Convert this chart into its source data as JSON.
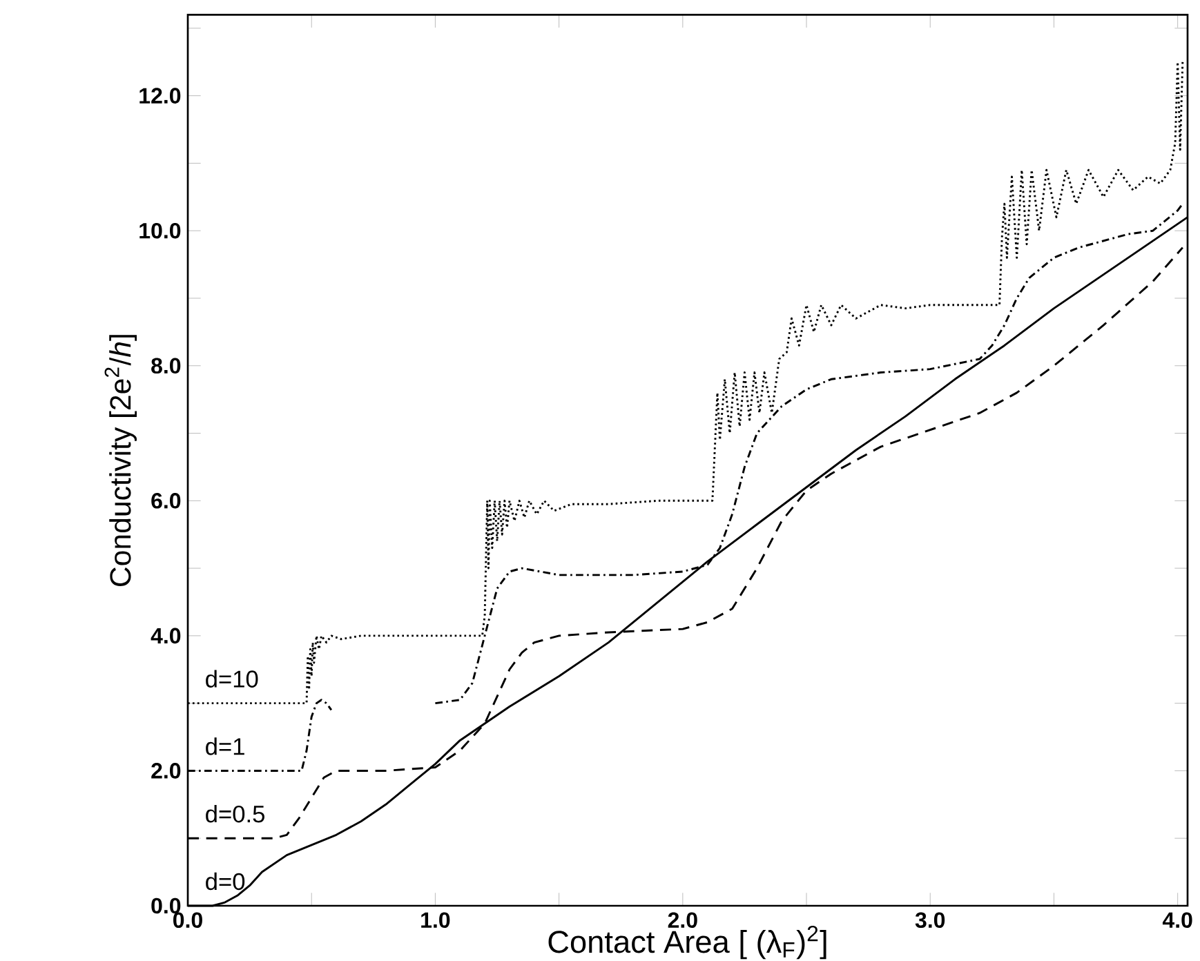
{
  "chart_data": {
    "type": "line",
    "xlabel": "Contact Area [ (λ$_{F}$)$^{2}$]",
    "ylabel": "Conductivity [2e$^{2}$/*h*]",
    "xlim": [
      0,
      4.04
    ],
    "ylim": [
      0,
      13.2
    ],
    "xticks": [
      {
        "value": 0,
        "label": "0.0"
      },
      {
        "value": 0.5,
        "label": null
      },
      {
        "value": 1,
        "label": "1.0"
      },
      {
        "value": 1.5,
        "label": null
      },
      {
        "value": 2,
        "label": "2.0"
      },
      {
        "value": 2.5,
        "label": null
      },
      {
        "value": 3,
        "label": "3.0"
      },
      {
        "value": 3.5,
        "label": null
      },
      {
        "value": 4,
        "label": "4.0"
      }
    ],
    "yticks": [
      {
        "value": 0,
        "label": "0.0"
      },
      {
        "value": 1,
        "label": null
      },
      {
        "value": 2,
        "label": "2.0"
      },
      {
        "value": 3,
        "label": null
      },
      {
        "value": 4,
        "label": "4.0"
      },
      {
        "value": 5,
        "label": null
      },
      {
        "value": 6,
        "label": "6.0"
      },
      {
        "value": 7,
        "label": null
      },
      {
        "value": 8,
        "label": "8.0"
      },
      {
        "value": 9,
        "label": null
      },
      {
        "value": 10,
        "label": "10.0"
      },
      {
        "value": 11,
        "label": null
      },
      {
        "value": 12,
        "label": "12.0"
      },
      {
        "value": 13,
        "label": null
      }
    ],
    "grid": false,
    "legend": false,
    "marker": "none",
    "series": [
      {
        "name": "d=10",
        "color": "#000000",
        "line_style": "dotted",
        "x": [
          0,
          0.48,
          0.485,
          0.49,
          0.495,
          0.5,
          0.505,
          0.51,
          0.52,
          0.53,
          0.54,
          0.56,
          0.58,
          0.62,
          0.7,
          0.9,
          1.19,
          1.2,
          1.21,
          1.215,
          1.22,
          1.23,
          1.24,
          1.25,
          1.26,
          1.27,
          1.28,
          1.29,
          1.3,
          1.32,
          1.34,
          1.36,
          1.38,
          1.41,
          1.44,
          1.48,
          1.55,
          1.7,
          1.9,
          2.12,
          2.13,
          2.14,
          2.15,
          2.17,
          2.19,
          2.21,
          2.23,
          2.25,
          2.27,
          2.29,
          2.31,
          2.33,
          2.36,
          2.39,
          2.42,
          2.44,
          2.47,
          2.5,
          2.53,
          2.56,
          2.6,
          2.64,
          2.7,
          2.8,
          2.9,
          3.0,
          3.1,
          3.2,
          3.28,
          3.29,
          3.3,
          3.31,
          3.33,
          3.35,
          3.37,
          3.39,
          3.41,
          3.44,
          3.47,
          3.51,
          3.55,
          3.59,
          3.64,
          3.7,
          3.76,
          3.82,
          3.88,
          3.93,
          3.97,
          3.99,
          4.0,
          4.01,
          4.02
        ],
        "values": [
          3.0,
          3.0,
          3.7,
          3.2,
          3.8,
          3.4,
          3.9,
          3.6,
          4.0,
          3.8,
          4.0,
          3.9,
          4.0,
          3.95,
          4.0,
          4.0,
          4.0,
          4.3,
          6.0,
          5.0,
          6.0,
          5.3,
          6.0,
          5.4,
          6.0,
          5.5,
          6.0,
          5.6,
          6.0,
          5.7,
          6.0,
          5.75,
          6.0,
          5.8,
          6.0,
          5.85,
          5.95,
          5.95,
          6.0,
          6.0,
          6.8,
          7.6,
          6.9,
          7.8,
          7.0,
          7.9,
          7.1,
          7.9,
          7.2,
          7.9,
          7.3,
          7.9,
          7.3,
          8.1,
          8.2,
          8.7,
          8.3,
          8.9,
          8.5,
          8.9,
          8.6,
          8.9,
          8.7,
          8.9,
          8.85,
          8.9,
          8.9,
          8.9,
          8.9,
          9.9,
          10.4,
          9.6,
          10.8,
          9.6,
          10.9,
          9.8,
          10.9,
          10.0,
          10.9,
          10.2,
          10.9,
          10.4,
          10.9,
          10.5,
          10.9,
          10.6,
          10.8,
          10.7,
          10.9,
          11.3,
          12.5,
          11.2,
          12.5
        ]
      },
      {
        "name": "d=1",
        "color": "#000000",
        "line_style": "dashdot",
        "x": [
          0,
          0.46,
          0.48,
          0.5,
          0.52,
          0.54,
          0.56,
          0.58,
          0.8,
          1.0,
          1.1,
          1.15,
          1.2,
          1.25,
          1.3,
          1.35,
          1.5,
          1.8,
          2.0,
          2.1,
          2.15,
          2.2,
          2.25,
          2.3,
          2.4,
          2.5,
          2.6,
          2.8,
          3.0,
          3.2,
          3.25,
          3.3,
          3.35,
          3.4,
          3.5,
          3.6,
          3.7,
          3.8,
          3.9,
          4.0,
          4.02
        ],
        "values": [
          2.0,
          2.0,
          2.3,
          2.8,
          3.0,
          3.05,
          3.0,
          2.9,
          null,
          3.0,
          3.05,
          3.3,
          4.0,
          4.7,
          4.95,
          5.0,
          4.9,
          4.9,
          4.95,
          5.05,
          5.3,
          5.8,
          6.5,
          7.0,
          7.4,
          7.65,
          7.8,
          7.9,
          7.95,
          8.1,
          8.3,
          8.6,
          9.0,
          9.3,
          9.6,
          9.75,
          9.85,
          9.95,
          10.0,
          10.3,
          10.4
        ]
      },
      {
        "name": "d=0.5",
        "color": "#000000",
        "line_style": "dashed",
        "x": [
          0,
          0.35,
          0.4,
          0.45,
          0.5,
          0.55,
          0.6,
          0.7,
          0.8,
          1.0,
          1.1,
          1.2,
          1.25,
          1.3,
          1.35,
          1.4,
          1.5,
          1.7,
          2.0,
          2.1,
          2.2,
          2.3,
          2.4,
          2.5,
          2.6,
          2.8,
          3.0,
          3.2,
          3.35,
          3.5,
          3.7,
          3.9,
          4.02
        ],
        "values": [
          1.0,
          1.0,
          1.05,
          1.3,
          1.6,
          1.9,
          2.0,
          2.0,
          2.0,
          2.05,
          2.3,
          2.7,
          3.1,
          3.5,
          3.75,
          3.9,
          4.0,
          4.05,
          4.1,
          4.2,
          4.4,
          5.0,
          5.7,
          6.15,
          6.4,
          6.8,
          7.05,
          7.3,
          7.6,
          8.0,
          8.6,
          9.25,
          9.75
        ]
      },
      {
        "name": "d=0",
        "color": "#000000",
        "line_style": "solid",
        "x": [
          0,
          0.1,
          0.15,
          0.2,
          0.25,
          0.3,
          0.4,
          0.5,
          0.6,
          0.7,
          0.8,
          0.9,
          1.0,
          1.1,
          1.2,
          1.3,
          1.5,
          1.7,
          1.9,
          2.1,
          2.3,
          2.5,
          2.7,
          2.9,
          3.1,
          3.3,
          3.5,
          3.7,
          3.9,
          4.04
        ],
        "values": [
          0.0,
          0.0,
          0.05,
          0.15,
          0.3,
          0.5,
          0.75,
          0.9,
          1.05,
          1.25,
          1.5,
          1.8,
          2.1,
          2.45,
          2.7,
          2.95,
          3.4,
          3.9,
          4.5,
          5.1,
          5.65,
          6.2,
          6.75,
          7.25,
          7.8,
          8.3,
          8.85,
          9.35,
          9.85,
          10.2
        ]
      }
    ]
  }
}
